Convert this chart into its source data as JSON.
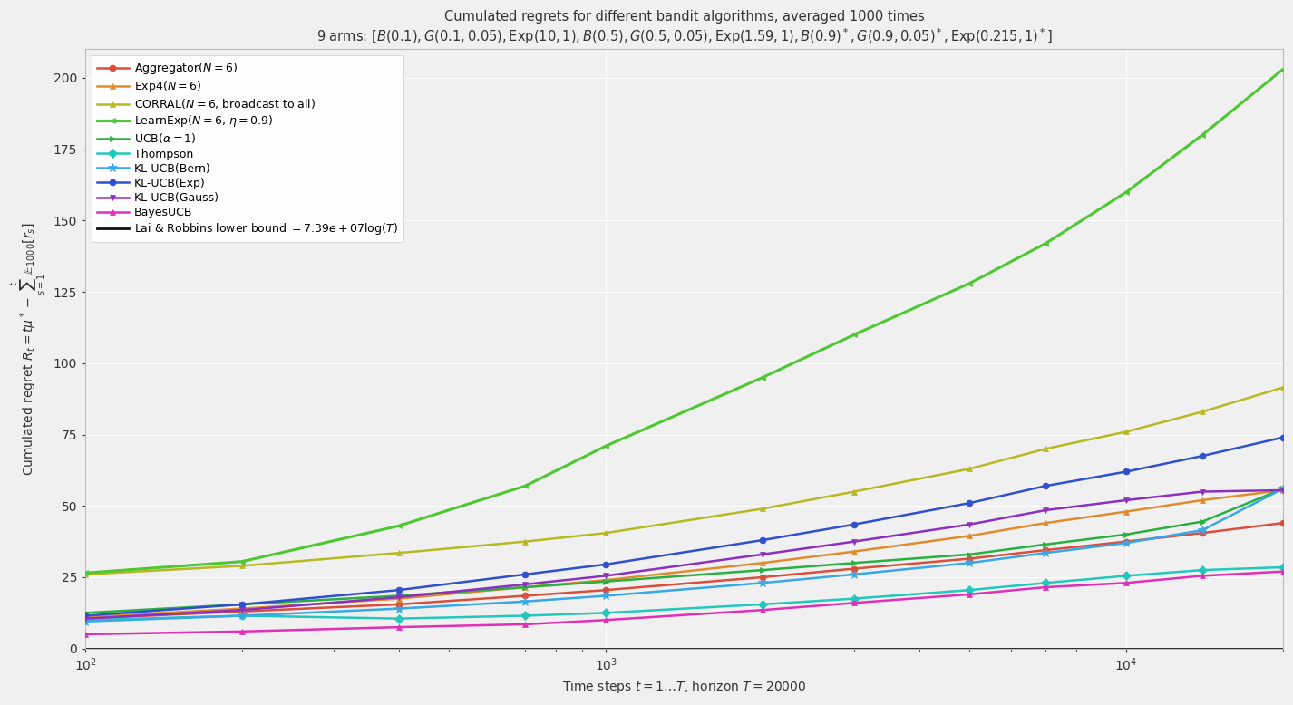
{
  "title_line1": "Cumulated regrets for different bandit algorithms, averaged 1000 times",
  "title_line2": "9 arms: $[B(0.1), G(0.1, 0.05), \\mathrm{Exp}(10, 1), B(0.5), G(0.5, 0.05), \\mathrm{Exp}(1.59, 1), B(0.9)^*, G(0.9, 0.05)^*, \\mathrm{Exp}(0.215, 1)^*]$",
  "xlabel": "Time steps $t = 1\\ldots T$, horizon $T = 20000$",
  "ylabel": "Cumulated regret $R_t = t\\mu^* - \\sum_{s=1}^{t} \\mathbb{E}_{1000}[r_s]$",
  "xlim": [
    100,
    20000
  ],
  "ylim": [
    0,
    210
  ],
  "background": "#f0f0f0",
  "grid_color": "#ffffff",
  "series": [
    {
      "label": "Aggregator$(N=6)$",
      "color": "#d94f3d",
      "marker": "o",
      "ms": 5,
      "lw": 1.8,
      "values": [
        [
          100,
          10.5
        ],
        [
          200,
          13.0
        ],
        [
          400,
          15.5
        ],
        [
          700,
          18.5
        ],
        [
          1000,
          20.5
        ],
        [
          2000,
          25.0
        ],
        [
          3000,
          28.0
        ],
        [
          5000,
          31.5
        ],
        [
          7000,
          34.5
        ],
        [
          10000,
          37.5
        ],
        [
          14000,
          40.5
        ],
        [
          20000,
          44.0
        ]
      ]
    },
    {
      "label": "Exp4$(N=6)$",
      "color": "#e08c2e",
      "marker": "^",
      "ms": 5,
      "lw": 1.8,
      "values": [
        [
          100,
          11.0
        ],
        [
          200,
          14.0
        ],
        [
          400,
          17.5
        ],
        [
          700,
          21.5
        ],
        [
          1000,
          24.0
        ],
        [
          2000,
          30.0
        ],
        [
          3000,
          34.0
        ],
        [
          5000,
          39.5
        ],
        [
          7000,
          44.0
        ],
        [
          10000,
          48.0
        ],
        [
          14000,
          52.0
        ],
        [
          20000,
          55.5
        ]
      ]
    },
    {
      "label": "CORRAL$(N=6$, broadcast to all$)$",
      "color": "#b8b822",
      "marker": "^",
      "ms": 5,
      "lw": 1.8,
      "values": [
        [
          100,
          26.0
        ],
        [
          200,
          29.0
        ],
        [
          400,
          33.5
        ],
        [
          700,
          37.5
        ],
        [
          1000,
          40.5
        ],
        [
          2000,
          49.0
        ],
        [
          3000,
          55.0
        ],
        [
          5000,
          63.0
        ],
        [
          7000,
          70.0
        ],
        [
          10000,
          76.0
        ],
        [
          14000,
          83.0
        ],
        [
          20000,
          91.5
        ]
      ]
    },
    {
      "label": "LearnExp$(N=6$, $\\eta=0.9)$",
      "color": "#4ec832",
      "marker": "<",
      "ms": 5,
      "lw": 2.2,
      "values": [
        [
          100,
          26.5
        ],
        [
          200,
          30.5
        ],
        [
          400,
          43.0
        ],
        [
          700,
          57.0
        ],
        [
          1000,
          71.0
        ],
        [
          2000,
          95.0
        ],
        [
          3000,
          110.0
        ],
        [
          5000,
          128.0
        ],
        [
          7000,
          142.0
        ],
        [
          10000,
          160.0
        ],
        [
          14000,
          180.0
        ],
        [
          20000,
          203.0
        ]
      ]
    },
    {
      "label": "UCB$(\\alpha=1)$",
      "color": "#28b040",
      "marker": ">",
      "ms": 5,
      "lw": 1.8,
      "values": [
        [
          100,
          12.5
        ],
        [
          200,
          15.5
        ],
        [
          400,
          18.5
        ],
        [
          700,
          21.5
        ],
        [
          1000,
          23.5
        ],
        [
          2000,
          27.5
        ],
        [
          3000,
          30.0
        ],
        [
          5000,
          33.0
        ],
        [
          7000,
          36.5
        ],
        [
          10000,
          40.0
        ],
        [
          14000,
          44.5
        ],
        [
          20000,
          56.0
        ]
      ]
    },
    {
      "label": "Thompson",
      "color": "#22c8bc",
      "marker": "D",
      "ms": 5,
      "lw": 1.8,
      "values": [
        [
          100,
          10.0
        ],
        [
          200,
          11.5
        ],
        [
          400,
          10.5
        ],
        [
          700,
          11.5
        ],
        [
          1000,
          12.5
        ],
        [
          2000,
          15.5
        ],
        [
          3000,
          17.5
        ],
        [
          5000,
          20.5
        ],
        [
          7000,
          23.0
        ],
        [
          10000,
          25.5
        ],
        [
          14000,
          27.5
        ],
        [
          20000,
          28.5
        ]
      ]
    },
    {
      "label": "KL-UCB(Bern)",
      "color": "#38a8e8",
      "marker": "*",
      "ms": 7,
      "lw": 1.8,
      "values": [
        [
          100,
          9.5
        ],
        [
          200,
          11.5
        ],
        [
          400,
          14.0
        ],
        [
          700,
          16.5
        ],
        [
          1000,
          18.5
        ],
        [
          2000,
          23.0
        ],
        [
          3000,
          26.0
        ],
        [
          5000,
          30.0
        ],
        [
          7000,
          33.5
        ],
        [
          10000,
          37.0
        ],
        [
          14000,
          41.5
        ],
        [
          20000,
          56.0
        ]
      ]
    },
    {
      "label": "KL-UCB(Exp)",
      "color": "#3050cc",
      "marker": "o",
      "ms": 5,
      "lw": 1.8,
      "values": [
        [
          100,
          11.5
        ],
        [
          200,
          15.5
        ],
        [
          400,
          20.5
        ],
        [
          700,
          26.0
        ],
        [
          1000,
          29.5
        ],
        [
          2000,
          38.0
        ],
        [
          3000,
          43.5
        ],
        [
          5000,
          51.0
        ],
        [
          7000,
          57.0
        ],
        [
          10000,
          62.0
        ],
        [
          14000,
          67.5
        ],
        [
          20000,
          74.0
        ]
      ]
    },
    {
      "label": "KL-UCB(Gauss)",
      "color": "#8c30c0",
      "marker": "v",
      "ms": 5,
      "lw": 1.8,
      "values": [
        [
          100,
          10.5
        ],
        [
          200,
          13.5
        ],
        [
          400,
          18.0
        ],
        [
          700,
          22.5
        ],
        [
          1000,
          25.5
        ],
        [
          2000,
          33.0
        ],
        [
          3000,
          37.5
        ],
        [
          5000,
          43.5
        ],
        [
          7000,
          48.5
        ],
        [
          10000,
          52.0
        ],
        [
          14000,
          55.0
        ],
        [
          20000,
          55.5
        ]
      ]
    },
    {
      "label": "BayesUCB",
      "color": "#e030b8",
      "marker": "^",
      "ms": 5,
      "lw": 1.8,
      "values": [
        [
          100,
          5.0
        ],
        [
          200,
          6.0
        ],
        [
          400,
          7.5
        ],
        [
          700,
          8.5
        ],
        [
          1000,
          10.0
        ],
        [
          2000,
          13.5
        ],
        [
          3000,
          16.0
        ],
        [
          5000,
          19.0
        ],
        [
          7000,
          21.5
        ],
        [
          10000,
          23.0
        ],
        [
          14000,
          25.5
        ],
        [
          20000,
          27.0
        ]
      ]
    }
  ],
  "lower_bound_label": "Lai & Robbins lower bound $= 7.39e+07 \\log(T)$",
  "lower_bound_color": "#111111",
  "lower_bound_lw": 2.0,
  "title_fontsize": 10.5,
  "legend_fontsize": 9,
  "axis_fontsize": 10,
  "tick_fontsize": 10
}
